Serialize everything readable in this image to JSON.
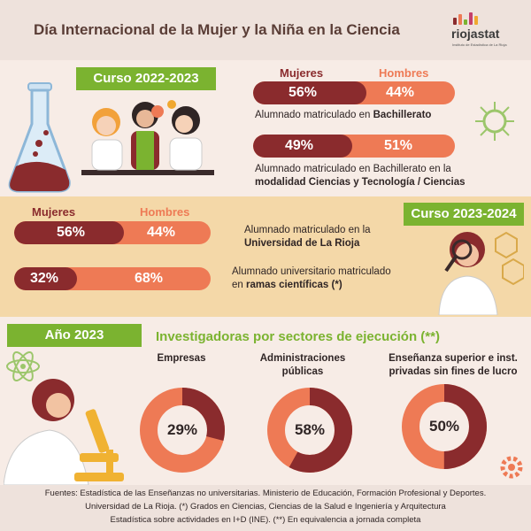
{
  "header": {
    "title": "Día Internacional de la Mujer y la Niña en la Ciencia",
    "logo_name": "riojastat",
    "logo_sub": "Instituto de Estadística de La Rioja"
  },
  "legend": {
    "women": "Mujeres",
    "men": "Hombres"
  },
  "section1": {
    "tag": "Curso 2022-2023",
    "stats": [
      {
        "women": "56%",
        "men": "44%",
        "women_fraction": 0.56,
        "desc_plain": "Alumnado matriculado en ",
        "desc_bold": "Bachillerato"
      },
      {
        "women": "49%",
        "men": "51%",
        "women_fraction": 0.49,
        "desc_plain": "Alumnado matriculado en Bachillerato en la",
        "desc_bold": "modalidad Ciencias y Tecnología / Ciencias"
      }
    ]
  },
  "section2": {
    "tag": "Curso 2023-2024",
    "stats": [
      {
        "women": "56%",
        "men": "44%",
        "women_fraction": 0.56,
        "desc_plain": "Alumnado matriculado en la",
        "desc_bold": "Universidad de La Rioja"
      },
      {
        "women": "32%",
        "men": "68%",
        "women_fraction": 0.32,
        "desc_plain": "Alumnado universitario matriculado",
        "desc_plain2": "en ",
        "desc_bold": "ramas científicas (*)"
      }
    ]
  },
  "section3": {
    "tag": "Año 2023",
    "title": "Investigadoras por sectores de ejecución (**)",
    "sectors": [
      {
        "line1": "Empresas",
        "line2": "",
        "value": "29%",
        "fraction": 0.29
      },
      {
        "line1": "Administraciones",
        "line2": "públicas",
        "value": "58%",
        "fraction": 0.58
      },
      {
        "line1": "Enseñanza superior e inst.",
        "line2": "privadas sin fines de lucro",
        "value": "50%",
        "fraction": 0.5
      }
    ]
  },
  "footer": {
    "line1": "Fuentes: Estadística de las Enseñanzas no universitarias.  Ministerio de Educación,  Formación Profesional y Deportes.",
    "line2": "Universidad de La Rioja. (*) Grados en Ciencias, Ciencias de la Salud e Ingeniería y Arquitectura",
    "line3": "Estadística sobre actividades en I+D (INE). (**) En equivalencia a jornada completa"
  },
  "colors": {
    "women": "#8a2b2d",
    "men": "#ee7a55",
    "accent": "#7bb330",
    "band": "#f4d8a8"
  }
}
